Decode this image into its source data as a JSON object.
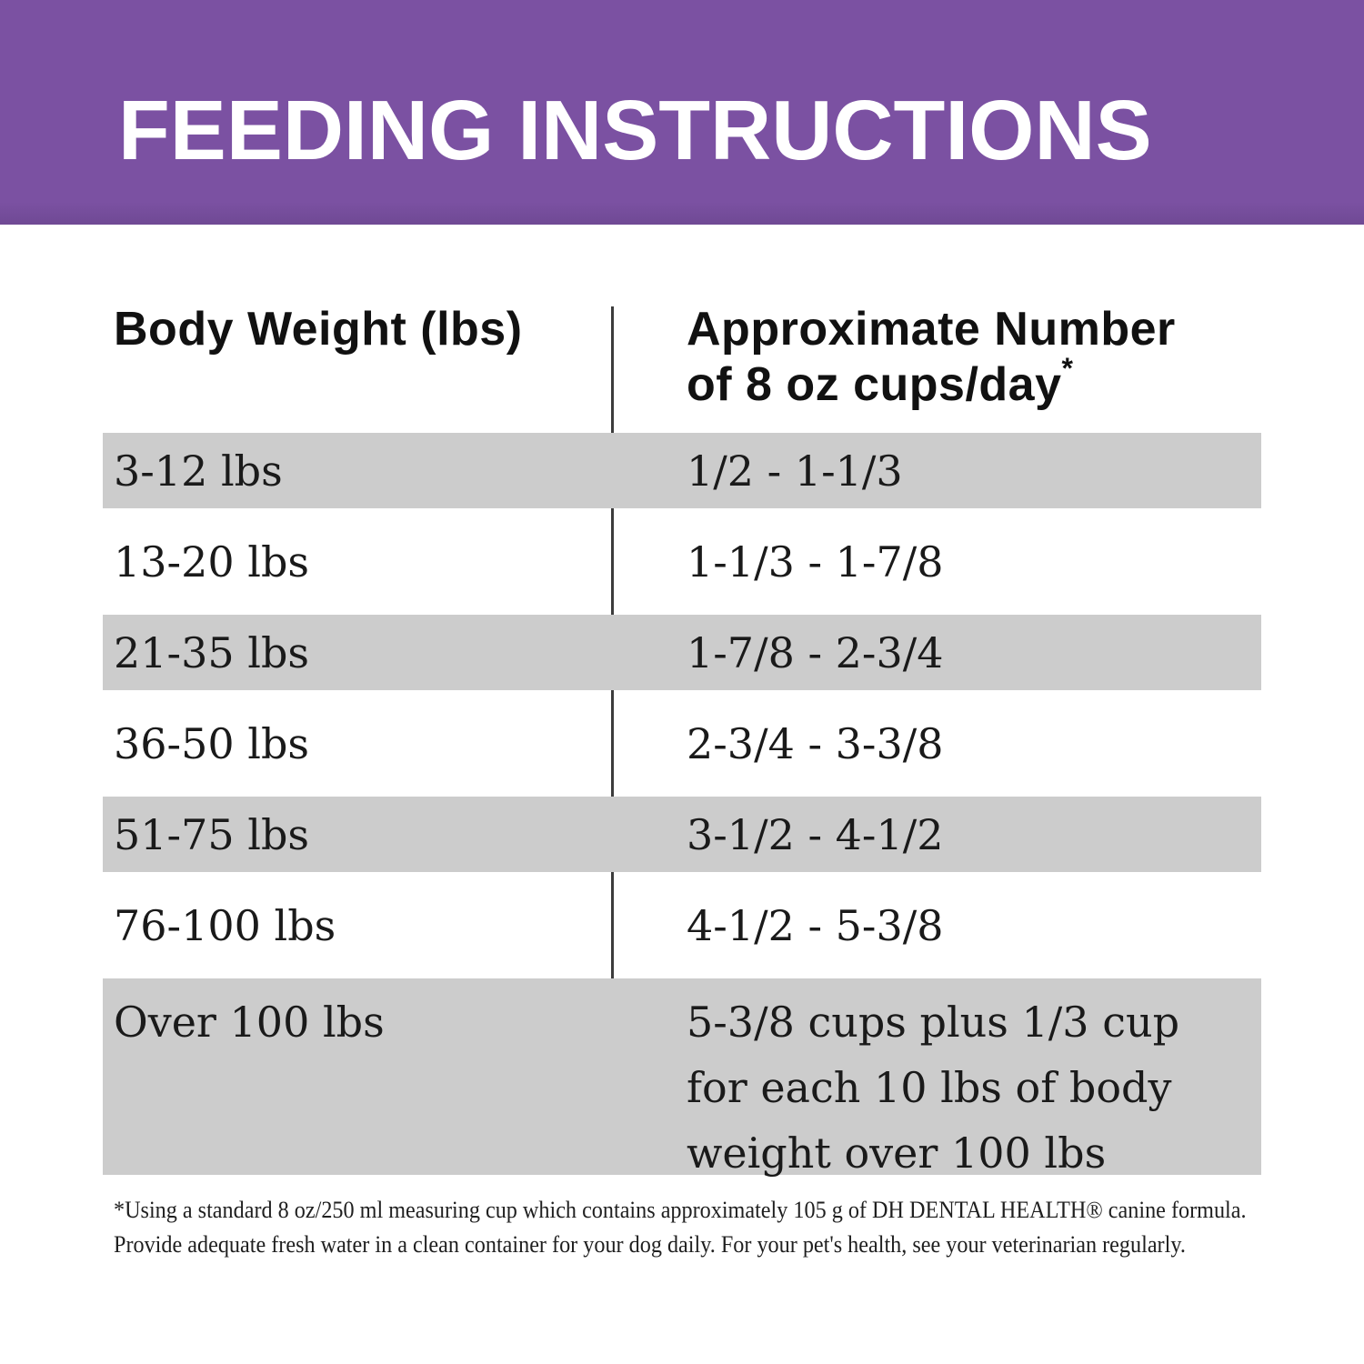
{
  "header": {
    "title": "FEEDING INSTRUCTIONS",
    "background_color": "#7b51a2",
    "text_color": "#ffffff"
  },
  "table": {
    "col1_header": "Body Weight (lbs)",
    "col2_header": "Approximate Number of 8 oz cups/day",
    "col2_footnote_marker": "*",
    "stripe_color": "#cccccc",
    "divider_color": "#3c3c3c",
    "rows": [
      {
        "weight": "3-12 lbs",
        "cups": "1/2 - 1-1/3"
      },
      {
        "weight": "13-20 lbs",
        "cups": "1-1/3 - 1-7/8"
      },
      {
        "weight": "21-35 lbs",
        "cups": "1-7/8 - 2-3/4"
      },
      {
        "weight": "36-50 lbs",
        "cups": "2-3/4 - 3-3/8"
      },
      {
        "weight": "51-75 lbs",
        "cups": "3-1/2 - 4-1/2"
      },
      {
        "weight": "76-100 lbs",
        "cups": "4-1/2 - 5-3/8"
      },
      {
        "weight": "Over 100 lbs",
        "cups": "5-3/8 cups plus 1/3 cup for each 10 lbs of body weight over 100 lbs"
      }
    ]
  },
  "footnote": {
    "line1": "*Using a standard 8 oz/250 ml measuring cup which contains approximately 105 g of DH DENTAL HEALTH® canine formula.",
    "line2": "Provide adequate fresh water in a clean container for your dog daily. For your pet's health, see your veterinarian regularly."
  }
}
